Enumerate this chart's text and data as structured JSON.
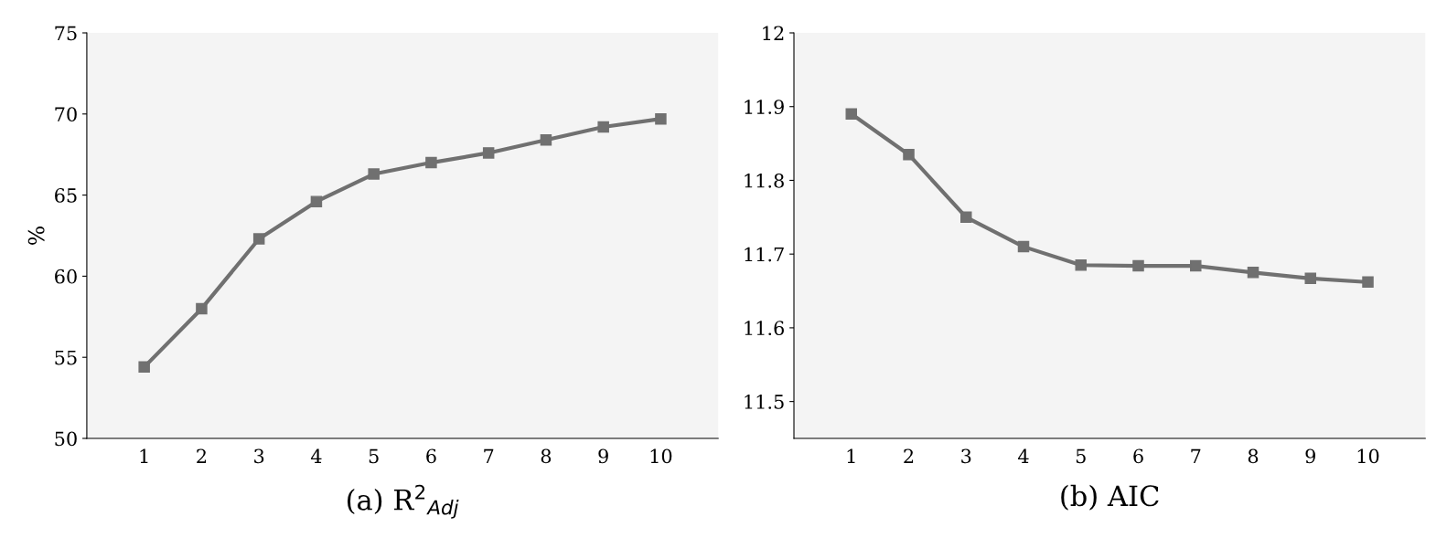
{
  "chart_data": [
    {
      "type": "line",
      "xlabel": "(a) R$^{2}$$_{Adj}$",
      "ylabel": "%",
      "categories": [
        "1",
        "2",
        "3",
        "4",
        "5",
        "6",
        "7",
        "8",
        "9",
        "10"
      ],
      "series": [
        {
          "color": "#707070",
          "values": [
            54.4,
            58.0,
            62.3,
            64.6,
            66.3,
            67.0,
            67.6,
            68.4,
            69.2,
            69.7
          ]
        }
      ],
      "ylim": [
        50,
        75
      ],
      "yticks": [
        50,
        55,
        60,
        65,
        70,
        75
      ],
      "marker": "square",
      "line_style": "solid",
      "grid": false,
      "legend": false
    },
    {
      "type": "line",
      "xlabel": "(b) AIC",
      "categories": [
        "1",
        "2",
        "3",
        "4",
        "5",
        "6",
        "7",
        "8",
        "9",
        "10"
      ],
      "series": [
        {
          "color": "#707070",
          "values": [
            11.89,
            11.835,
            11.75,
            11.71,
            11.685,
            11.684,
            11.684,
            11.675,
            11.667,
            11.662
          ]
        }
      ],
      "ylim": [
        11.45,
        12
      ],
      "yticks": [
        11.5,
        11.6,
        11.7,
        11.8,
        11.9,
        12
      ],
      "marker": "square",
      "line_style": "solid",
      "grid": false,
      "legend": false
    }
  ]
}
